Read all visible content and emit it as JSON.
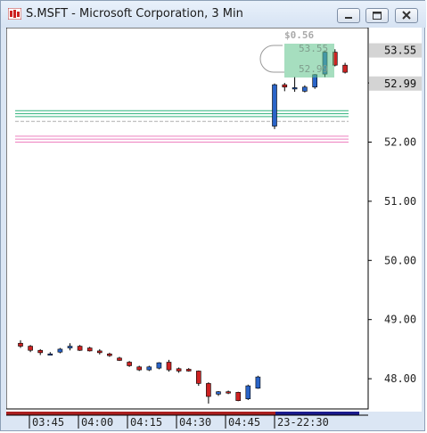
{
  "window": {
    "title": "S.MSFT - Microsoft Corporation, 3 Min",
    "minimize_icon": "minimize-icon",
    "maximize_icon": "maximize-icon",
    "close_icon": "close-icon"
  },
  "chart_data": {
    "type": "candlestick",
    "title": "",
    "y_ticks": [
      "53.00",
      "52.00",
      "51.00",
      "50.00",
      "49.00",
      "48.00"
    ],
    "y_tick_values": [
      53,
      52,
      51,
      50,
      49,
      48
    ],
    "ylim": [
      47.3,
      53.9
    ],
    "x_ticks": [
      "03:45",
      "04:00",
      "04:15",
      "04:30",
      "04:45",
      "23-22:30"
    ],
    "price_labels": [
      {
        "text": "53.55",
        "value": 53.55
      },
      {
        "text": "52.99",
        "value": 52.99
      }
    ],
    "change_label": "$0.56",
    "box_labels": [
      {
        "text": "53.55",
        "value": 53.55
      },
      {
        "text": "52.99",
        "value": 52.99
      }
    ],
    "reference_lines": [
      {
        "value": 52.53,
        "color": "#2fb37d"
      },
      {
        "value": 52.48,
        "color": "#2fb37d"
      },
      {
        "value": 52.43,
        "color": "#2fb37d"
      },
      {
        "value": 52.35,
        "color": "#b0b0b0"
      },
      {
        "value": 52.1,
        "color": "#ee7fbf"
      },
      {
        "value": 52.05,
        "color": "#ee7fbf"
      },
      {
        "value": 52.0,
        "color": "#ee7fbf"
      }
    ],
    "candles": [
      {
        "o": 48.6,
        "h": 48.65,
        "l": 48.52,
        "c": 48.55
      },
      {
        "o": 48.55,
        "h": 48.57,
        "l": 48.45,
        "c": 48.48
      },
      {
        "o": 48.48,
        "h": 48.5,
        "l": 48.4,
        "c": 48.44
      },
      {
        "o": 48.42,
        "h": 48.45,
        "l": 48.4,
        "c": 48.42
      },
      {
        "o": 48.45,
        "h": 48.52,
        "l": 48.43,
        "c": 48.5
      },
      {
        "o": 48.52,
        "h": 48.6,
        "l": 48.48,
        "c": 48.55
      },
      {
        "o": 48.55,
        "h": 48.57,
        "l": 48.47,
        "c": 48.48
      },
      {
        "o": 48.52,
        "h": 48.54,
        "l": 48.46,
        "c": 48.47
      },
      {
        "o": 48.47,
        "h": 48.5,
        "l": 48.41,
        "c": 48.44
      },
      {
        "o": 48.42,
        "h": 48.44,
        "l": 48.37,
        "c": 48.39
      },
      {
        "o": 48.35,
        "h": 48.37,
        "l": 48.3,
        "c": 48.31
      },
      {
        "o": 48.28,
        "h": 48.3,
        "l": 48.2,
        "c": 48.22
      },
      {
        "o": 48.2,
        "h": 48.22,
        "l": 48.13,
        "c": 48.15
      },
      {
        "o": 48.15,
        "h": 48.22,
        "l": 48.13,
        "c": 48.2
      },
      {
        "o": 48.18,
        "h": 48.28,
        "l": 48.16,
        "c": 48.27
      },
      {
        "o": 48.28,
        "h": 48.32,
        "l": 48.12,
        "c": 48.15
      },
      {
        "o": 48.17,
        "h": 48.19,
        "l": 48.1,
        "c": 48.13
      },
      {
        "o": 48.16,
        "h": 48.18,
        "l": 48.12,
        "c": 48.13
      },
      {
        "o": 48.13,
        "h": 48.14,
        "l": 47.88,
        "c": 47.92
      },
      {
        "o": 47.92,
        "h": 47.94,
        "l": 47.58,
        "c": 47.7
      },
      {
        "o": 47.74,
        "h": 47.79,
        "l": 47.71,
        "c": 47.78
      },
      {
        "o": 47.78,
        "h": 47.8,
        "l": 47.74,
        "c": 47.77
      },
      {
        "o": 47.77,
        "h": 47.78,
        "l": 47.62,
        "c": 47.63
      },
      {
        "o": 47.66,
        "h": 47.9,
        "l": 47.64,
        "c": 47.88
      },
      {
        "o": 47.84,
        "h": 48.05,
        "l": 47.83,
        "c": 48.03
      },
      {
        "o": 52.27,
        "h": 52.99,
        "l": 52.22,
        "c": 52.97
      },
      {
        "o": 52.97,
        "h": 53.0,
        "l": 52.86,
        "c": 52.93
      },
      {
        "o": 52.9,
        "h": 53.1,
        "l": 52.85,
        "c": 52.92
      },
      {
        "o": 52.86,
        "h": 52.96,
        "l": 52.84,
        "c": 52.93
      },
      {
        "o": 52.93,
        "h": 53.15,
        "l": 52.9,
        "c": 53.14
      },
      {
        "o": 53.15,
        "h": 53.55,
        "l": 53.1,
        "c": 53.52
      },
      {
        "o": 53.52,
        "h": 53.57,
        "l": 53.28,
        "c": 53.3
      },
      {
        "o": 53.3,
        "h": 53.34,
        "l": 53.16,
        "c": 53.18
      }
    ],
    "colors": {
      "up": "#2a64c8",
      "down": "#cc2222",
      "axis": "#000000"
    },
    "grid": false,
    "legend": "none"
  }
}
